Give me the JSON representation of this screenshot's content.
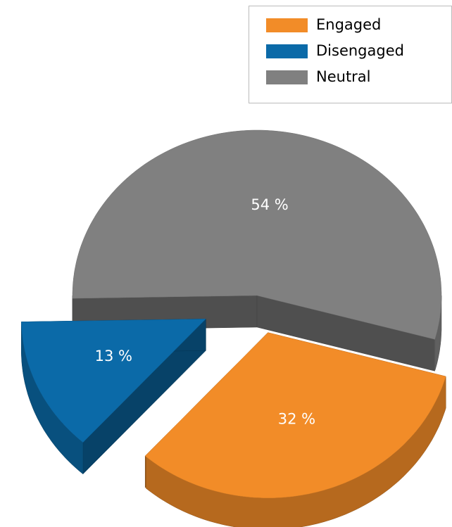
{
  "chart_data": {
    "type": "pie",
    "categories": [
      "Engaged",
      "Disengaged",
      "Neutral"
    ],
    "values": [
      32,
      13,
      54
    ],
    "value_labels": [
      "32 %",
      "13 %",
      "54 %"
    ],
    "colors": [
      "#f28c28",
      "#0b6aa8",
      "#808080"
    ]
  }
}
